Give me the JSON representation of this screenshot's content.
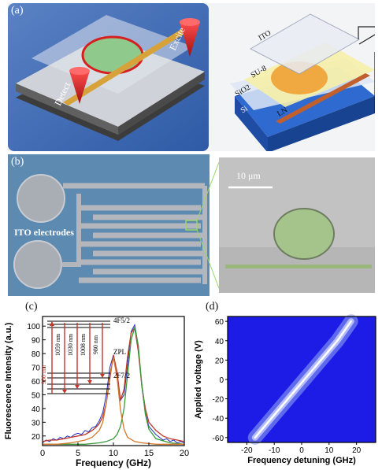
{
  "panel_a": {
    "label": "(a)",
    "left_annotations": {
      "excite": "Excite",
      "detect": "Detect"
    },
    "layers": [
      "ITO",
      "SU-8",
      "SiO2",
      "LN",
      "Si"
    ]
  },
  "panel_b": {
    "label": "(b)",
    "ito_label": "ITO electrodes",
    "scale_bar": "10 μm"
  },
  "panel_c": {
    "label": "(c)",
    "levels": {
      "upper": "4F5/2",
      "zpl": "ZPL",
      "lower": "2F7/2"
    },
    "pump": "980 nm",
    "transitions": [
      "1059 nm",
      "1030 nm",
      "1008 nm",
      "980 nm"
    ]
  },
  "panel_d": {
    "label": "(d)"
  },
  "chart_data": [
    {
      "type": "line",
      "xlabel": "Frequency (GHz)",
      "ylabel": "Fluorescence Intensity (a.u.)",
      "xlim": [
        0,
        20
      ],
      "ylim": [
        13,
        107
      ],
      "xticks": [
        0,
        5,
        10,
        15,
        20
      ],
      "yticks": [
        20,
        30,
        40,
        50,
        60,
        70,
        80,
        90,
        100
      ],
      "series": [
        {
          "color": "#1f2fbf",
          "x": [
            0,
            0.5,
            1,
            1.5,
            2,
            2.5,
            3,
            3.5,
            4,
            4.5,
            5,
            5.5,
            6,
            6.5,
            7,
            7.5,
            8,
            8.5,
            9,
            9.5,
            10,
            10.5,
            11,
            11.5,
            12,
            12.5,
            13,
            13.5,
            14,
            14.5,
            15,
            15.5,
            16,
            16.5,
            17,
            17.5,
            18,
            18.5,
            19,
            19.5,
            20
          ],
          "values": [
            15,
            17,
            16,
            18,
            17,
            19,
            18,
            20,
            19,
            21,
            22,
            21,
            24,
            23,
            26,
            27,
            31,
            37,
            50,
            70,
            79,
            66,
            46,
            50,
            72,
            96,
            101,
            86,
            56,
            37,
            27,
            24,
            21,
            19,
            17,
            18,
            16,
            17,
            15,
            16,
            15
          ]
        },
        {
          "color": "#c0392b",
          "x": [
            0,
            1,
            2,
            3,
            4,
            5,
            6,
            7,
            7.5,
            8,
            8.5,
            9,
            9.5,
            10,
            10.5,
            11,
            11.5,
            12,
            12.5,
            13,
            13.5,
            14,
            14.5,
            15,
            16,
            17,
            18,
            19,
            20
          ],
          "values": [
            16,
            17,
            17,
            18,
            19,
            20,
            21,
            24,
            26,
            29,
            34,
            44,
            62,
            79,
            67,
            46,
            54,
            78,
            95,
            99,
            82,
            57,
            40,
            30,
            24,
            20,
            18,
            17,
            16
          ]
        },
        {
          "color": "#3a9a3a",
          "x": [
            0,
            2,
            4,
            6,
            8,
            9,
            10,
            10.5,
            11,
            11.5,
            12,
            12.5,
            13,
            13.5,
            14,
            14.5,
            15,
            16,
            18,
            20
          ],
          "values": [
            14,
            14,
            14,
            14,
            15,
            16,
            18,
            21,
            27,
            40,
            65,
            90,
            99,
            86,
            58,
            36,
            25,
            18,
            15,
            14
          ]
        },
        {
          "color": "#d4772b",
          "x": [
            0,
            2,
            4,
            6,
            7,
            8,
            8.5,
            9,
            9.5,
            10,
            10.5,
            11,
            11.5,
            12,
            13,
            14,
            16,
            18,
            20
          ],
          "values": [
            14,
            14,
            15,
            17,
            19,
            24,
            30,
            44,
            65,
            77,
            63,
            39,
            25,
            19,
            16,
            15,
            14,
            14,
            14
          ]
        }
      ]
    },
    {
      "type": "heatmap",
      "xlabel": "Frequency detuning (GHz)",
      "ylabel": "Applied voltage (V)",
      "xlim": [
        -27,
        27
      ],
      "ylim": [
        -65,
        65
      ],
      "xticks": [
        -20,
        -10,
        0,
        10,
        20
      ],
      "yticks": [
        -60,
        -40,
        -20,
        0,
        20,
        40,
        60
      ],
      "colors": {
        "background": "#1c1ce6",
        "peak": "#ffffff"
      },
      "ridge": {
        "voltage": [
          -60,
          -40,
          -20,
          0,
          20,
          40,
          60
        ],
        "detuning": [
          -17,
          -11,
          -5,
          1,
          7,
          13,
          18
        ]
      }
    }
  ]
}
